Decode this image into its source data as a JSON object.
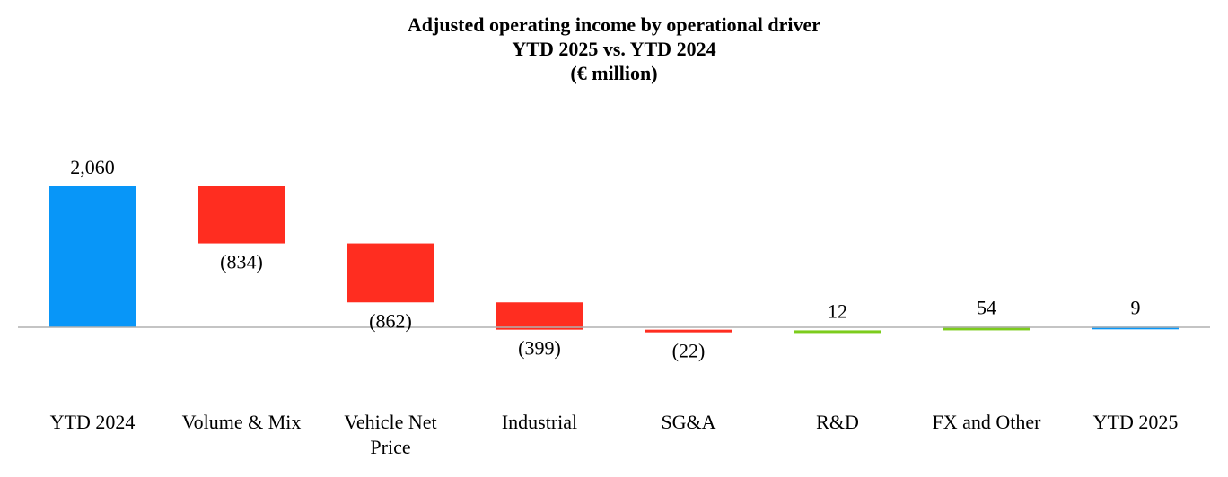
{
  "chart_data": {
    "type": "bar",
    "subtype": "waterfall",
    "title": "Adjusted operating income by operational driver",
    "subtitle": "YTD 2025 vs. YTD 2024",
    "unit_label": "(€ million)",
    "categories": [
      [
        "YTD 2024"
      ],
      [
        "Volume & Mix"
      ],
      [
        "Vehicle Net",
        "Price"
      ],
      [
        "Industrial"
      ],
      [
        "SG&A"
      ],
      [
        "R&D"
      ],
      [
        "FX and Other"
      ],
      [
        "YTD 2025"
      ]
    ],
    "values": [
      2060,
      -834,
      -862,
      -399,
      -22,
      12,
      54,
      9
    ],
    "value_labels": [
      "2,060",
      "(834)",
      "(862)",
      "(399)",
      "(22)",
      "12",
      "54",
      "9"
    ],
    "kinds": [
      "total",
      "delta",
      "delta",
      "delta",
      "delta",
      "delta",
      "delta",
      "total"
    ],
    "colors": {
      "total": "#0896f8",
      "negative": "#ff2d20",
      "positive": "#7ccc1c",
      "baseline": "#b0b0b0"
    },
    "ylim": [
      -420,
      2400
    ],
    "grid": false,
    "legend": "none"
  }
}
